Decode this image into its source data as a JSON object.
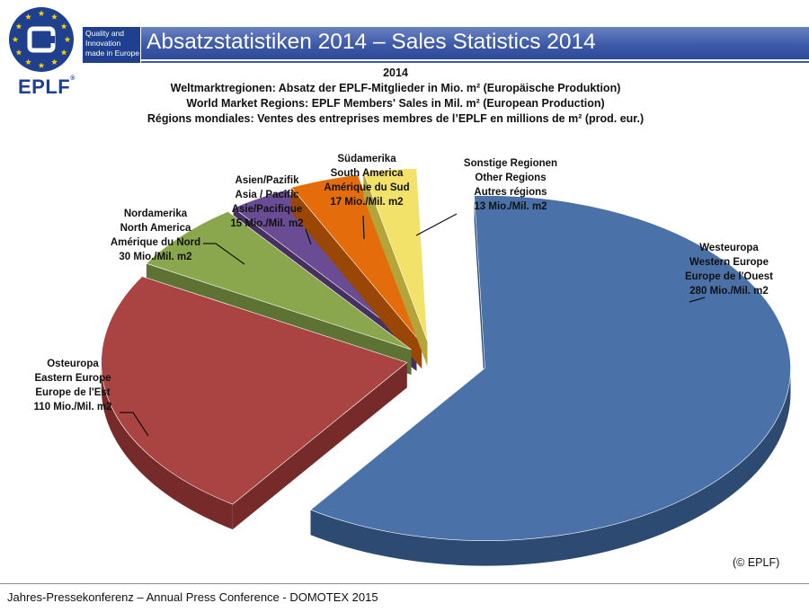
{
  "logo": {
    "text_lines": [
      "Quality and",
      "Innovation",
      "made in Europe"
    ],
    "brand": "EPLF",
    "registered": "®"
  },
  "page_title": "Absatzstatistiken 2014 – Sales Statistics 2014",
  "chart_data": {
    "type": "pie",
    "title_lines": [
      "2014",
      "Weltmarktregionen: Absatz der EPLF-Mitglieder in Mio. m² (Europäische Produktion)",
      "World Market Regions: EPLF Members' Sales in Mil. m² (European Production)",
      "Régions mondiales: Ventes des entreprises membres de l’EPLF en millions de m² (prod. eur.)"
    ],
    "slices": [
      {
        "label_lines": [
          "Westeuropa",
          "Western Europe",
          "Europe de l'Ouest",
          "280 Mio./Mil. m2"
        ],
        "value": 280,
        "color": "#4a72a8",
        "side": "#2c4a72"
      },
      {
        "label_lines": [
          "Osteuropa",
          "Eastern Europe",
          "Europe de l'Est",
          "110 Mio./Mil. m2"
        ],
        "value": 110,
        "color": "#a94442",
        "side": "#762b2a"
      },
      {
        "label_lines": [
          "Nordamerika",
          "North America",
          "Amérique du Nord",
          "30 Mio./Mil. m2"
        ],
        "value": 30,
        "color": "#8aa74e",
        "side": "#5d7233"
      },
      {
        "label_lines": [
          "Asien/Pazifik",
          "Asia / Pacific",
          "Asie/Pacifique",
          "15 Mio./Mil. m2"
        ],
        "value": 15,
        "color": "#6a4c95",
        "side": "#45305f"
      },
      {
        "label_lines": [
          "Südamerika",
          "South America",
          "Amérique du Sud",
          "17 Mio./Mil. m2"
        ],
        "value": 17,
        "color": "#e46c0a",
        "side": "#9a4706"
      },
      {
        "label_lines": [
          "Sonstige Regionen",
          "Other Regions",
          "Autres régions",
          "13 Mio./Mil. m2"
        ],
        "value": 13,
        "color": "#f2e26a",
        "side": "#b5a43a"
      }
    ]
  },
  "copyright": "(© EPLF)",
  "footer": "Jahres-Pressekonferenz – Annual Press Conference - DOMOTEX 2015"
}
